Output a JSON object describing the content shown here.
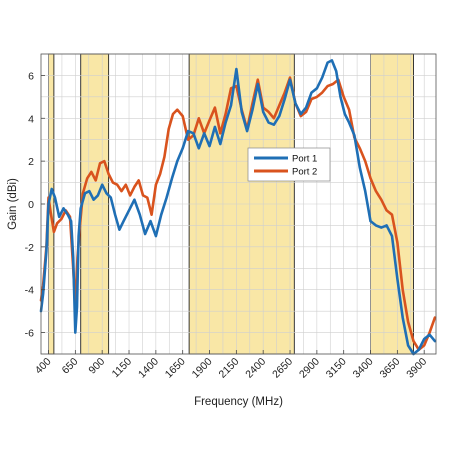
{
  "chart_data": {
    "type": "line",
    "xlabel": "Frequency (MHz)",
    "ylabel": "Gain (dBi)",
    "xlim": [
      330,
      4010
    ],
    "ylim": [
      -7,
      7
    ],
    "xticks": [
      400,
      650,
      900,
      1150,
      1400,
      1650,
      1900,
      2150,
      2400,
      2650,
      2900,
      3150,
      3400,
      3650,
      3900
    ],
    "yticks": [
      -6,
      -4,
      -2,
      0,
      2,
      4,
      6
    ],
    "grid": true,
    "legend_position": "center-right",
    "highlight_bands": [
      [
        400,
        450
      ],
      [
        700,
        960
      ],
      [
        1710,
        2690
      ],
      [
        3400,
        3800
      ]
    ],
    "colors": {
      "band_fill": "#f9e7a6",
      "port1": "#1f6fb5",
      "port2": "#d9531e"
    },
    "series": [
      {
        "name": "Port 1",
        "points": [
          [
            330,
            -5.0
          ],
          [
            350,
            -4.2
          ],
          [
            380,
            -2.2
          ],
          [
            400,
            0.0
          ],
          [
            430,
            0.7
          ],
          [
            460,
            0.3
          ],
          [
            500,
            -0.6
          ],
          [
            540,
            -0.2
          ],
          [
            580,
            -0.5
          ],
          [
            610,
            -0.8
          ],
          [
            630,
            -2.5
          ],
          [
            650,
            -6.0
          ],
          [
            665,
            -4.8
          ],
          [
            680,
            -1.5
          ],
          [
            700,
            -0.2
          ],
          [
            740,
            0.5
          ],
          [
            780,
            0.6
          ],
          [
            820,
            0.2
          ],
          [
            860,
            0.4
          ],
          [
            900,
            0.9
          ],
          [
            940,
            0.5
          ],
          [
            980,
            0.3
          ],
          [
            1020,
            -0.5
          ],
          [
            1060,
            -1.2
          ],
          [
            1100,
            -0.8
          ],
          [
            1150,
            -0.3
          ],
          [
            1200,
            0.2
          ],
          [
            1250,
            -0.5
          ],
          [
            1300,
            -1.4
          ],
          [
            1350,
            -0.8
          ],
          [
            1400,
            -1.5
          ],
          [
            1450,
            -0.5
          ],
          [
            1500,
            0.3
          ],
          [
            1550,
            1.2
          ],
          [
            1600,
            2.0
          ],
          [
            1650,
            2.6
          ],
          [
            1700,
            3.4
          ],
          [
            1750,
            3.3
          ],
          [
            1800,
            2.6
          ],
          [
            1850,
            3.3
          ],
          [
            1900,
            2.7
          ],
          [
            1950,
            3.6
          ],
          [
            2000,
            2.8
          ],
          [
            2050,
            3.8
          ],
          [
            2100,
            4.6
          ],
          [
            2150,
            6.3
          ],
          [
            2200,
            4.3
          ],
          [
            2250,
            3.4
          ],
          [
            2300,
            4.4
          ],
          [
            2350,
            5.6
          ],
          [
            2400,
            4.3
          ],
          [
            2450,
            3.8
          ],
          [
            2500,
            3.7
          ],
          [
            2550,
            4.1
          ],
          [
            2600,
            4.9
          ],
          [
            2650,
            5.8
          ],
          [
            2700,
            4.7
          ],
          [
            2750,
            4.2
          ],
          [
            2800,
            4.5
          ],
          [
            2850,
            5.2
          ],
          [
            2900,
            5.4
          ],
          [
            2950,
            5.9
          ],
          [
            3000,
            6.6
          ],
          [
            3040,
            6.7
          ],
          [
            3080,
            6.2
          ],
          [
            3120,
            5.0
          ],
          [
            3160,
            4.2
          ],
          [
            3200,
            3.8
          ],
          [
            3250,
            3.2
          ],
          [
            3300,
            1.7
          ],
          [
            3350,
            0.6
          ],
          [
            3400,
            -0.8
          ],
          [
            3450,
            -1.0
          ],
          [
            3500,
            -1.1
          ],
          [
            3550,
            -1.0
          ],
          [
            3600,
            -1.5
          ],
          [
            3650,
            -3.5
          ],
          [
            3700,
            -5.3
          ],
          [
            3750,
            -6.6
          ],
          [
            3800,
            -7.0
          ],
          [
            3850,
            -6.8
          ],
          [
            3900,
            -6.3
          ],
          [
            3950,
            -6.1
          ],
          [
            4000,
            -6.4
          ]
        ]
      },
      {
        "name": "Port 2",
        "points": [
          [
            330,
            -4.5
          ],
          [
            350,
            -3.8
          ],
          [
            380,
            -2.0
          ],
          [
            400,
            0.3
          ],
          [
            420,
            -0.4
          ],
          [
            450,
            -1.3
          ],
          [
            480,
            -0.9
          ],
          [
            520,
            -0.7
          ],
          [
            560,
            -0.3
          ],
          [
            600,
            -0.6
          ],
          [
            630,
            -3.0
          ],
          [
            650,
            -4.8
          ],
          [
            670,
            -2.5
          ],
          [
            690,
            -1.2
          ],
          [
            720,
            0.5
          ],
          [
            760,
            1.2
          ],
          [
            800,
            1.5
          ],
          [
            840,
            1.1
          ],
          [
            880,
            1.9
          ],
          [
            920,
            2.0
          ],
          [
            960,
            1.4
          ],
          [
            1000,
            1.0
          ],
          [
            1040,
            0.9
          ],
          [
            1080,
            0.6
          ],
          [
            1120,
            0.9
          ],
          [
            1160,
            0.4
          ],
          [
            1200,
            0.8
          ],
          [
            1240,
            1.1
          ],
          [
            1280,
            0.4
          ],
          [
            1320,
            0.3
          ],
          [
            1360,
            -0.5
          ],
          [
            1400,
            0.9
          ],
          [
            1440,
            1.4
          ],
          [
            1480,
            2.2
          ],
          [
            1520,
            3.5
          ],
          [
            1560,
            4.2
          ],
          [
            1600,
            4.4
          ],
          [
            1650,
            4.1
          ],
          [
            1700,
            3.0
          ],
          [
            1750,
            3.2
          ],
          [
            1800,
            4.0
          ],
          [
            1850,
            3.3
          ],
          [
            1900,
            3.9
          ],
          [
            1950,
            4.5
          ],
          [
            2000,
            3.3
          ],
          [
            2050,
            4.2
          ],
          [
            2100,
            5.4
          ],
          [
            2150,
            5.5
          ],
          [
            2200,
            4.4
          ],
          [
            2250,
            3.5
          ],
          [
            2300,
            4.7
          ],
          [
            2350,
            5.8
          ],
          [
            2400,
            4.5
          ],
          [
            2450,
            4.3
          ],
          [
            2500,
            4.0
          ],
          [
            2550,
            4.6
          ],
          [
            2600,
            5.2
          ],
          [
            2650,
            5.9
          ],
          [
            2700,
            4.7
          ],
          [
            2750,
            4.1
          ],
          [
            2800,
            4.3
          ],
          [
            2850,
            4.9
          ],
          [
            2900,
            5.0
          ],
          [
            2950,
            5.2
          ],
          [
            3000,
            5.5
          ],
          [
            3050,
            5.6
          ],
          [
            3100,
            5.8
          ],
          [
            3150,
            5.0
          ],
          [
            3200,
            4.4
          ],
          [
            3250,
            3.1
          ],
          [
            3300,
            2.6
          ],
          [
            3350,
            2.0
          ],
          [
            3400,
            1.2
          ],
          [
            3450,
            0.6
          ],
          [
            3500,
            0.2
          ],
          [
            3550,
            -0.3
          ],
          [
            3600,
            -0.5
          ],
          [
            3650,
            -1.8
          ],
          [
            3700,
            -4.0
          ],
          [
            3750,
            -5.5
          ],
          [
            3800,
            -6.4
          ],
          [
            3850,
            -6.8
          ],
          [
            3900,
            -6.6
          ],
          [
            3950,
            -6.0
          ],
          [
            4000,
            -5.3
          ]
        ]
      }
    ]
  }
}
